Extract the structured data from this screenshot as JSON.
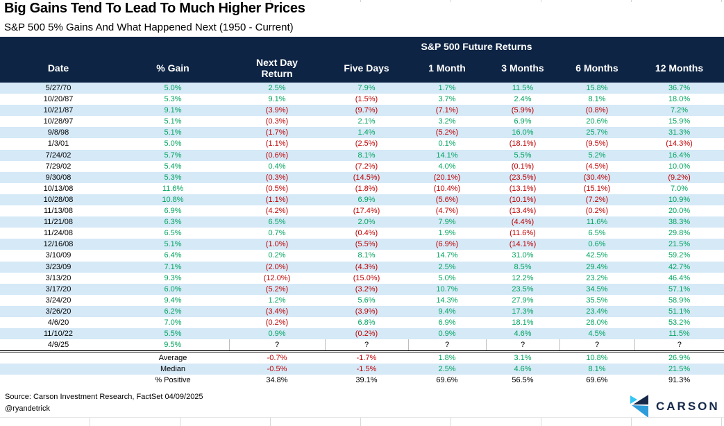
{
  "chart_data": {
    "type": "table",
    "title": "Big Gains Tend To Lead To Much Higher Prices",
    "subtitle": "S&P 500 5% Gains And What Happened Next (1950 - Current)",
    "group_header": "S&P 500 Future Returns",
    "group_header_spans_columns": [
      "Next Day Return",
      "Five Days",
      "1 Month",
      "3 Months",
      "6 Months",
      "12 Months"
    ],
    "columns": [
      "Date",
      "% Gain",
      "Next Day\nReturn",
      "Five Days",
      "1 Month",
      "3 Months",
      "6 Months",
      "12 Months"
    ],
    "rows": [
      [
        "5/27/70",
        "5.0%",
        "2.5%",
        "7.9%",
        "1.7%",
        "11.5%",
        "15.8%",
        "36.7%"
      ],
      [
        "10/20/87",
        "5.3%",
        "9.1%",
        "(1.5%)",
        "3.7%",
        "2.4%",
        "8.1%",
        "18.0%"
      ],
      [
        "10/21/87",
        "9.1%",
        "(3.9%)",
        "(9.7%)",
        "(7.1%)",
        "(5.9%)",
        "(0.8%)",
        "7.2%"
      ],
      [
        "10/28/97",
        "5.1%",
        "(0.3%)",
        "2.1%",
        "3.2%",
        "6.9%",
        "20.6%",
        "15.9%"
      ],
      [
        "9/8/98",
        "5.1%",
        "(1.7%)",
        "1.4%",
        "(5.2%)",
        "16.0%",
        "25.7%",
        "31.3%"
      ],
      [
        "1/3/01",
        "5.0%",
        "(1.1%)",
        "(2.5%)",
        "0.1%",
        "(18.1%)",
        "(9.5%)",
        "(14.3%)"
      ],
      [
        "7/24/02",
        "5.7%",
        "(0.6%)",
        "8.1%",
        "14.1%",
        "5.5%",
        "5.2%",
        "16.4%"
      ],
      [
        "7/29/02",
        "5.4%",
        "0.4%",
        "(7.2%)",
        "4.0%",
        "(0.1%)",
        "(4.5%)",
        "10.0%"
      ],
      [
        "9/30/08",
        "5.3%",
        "(0.3%)",
        "(14.5%)",
        "(20.1%)",
        "(23.5%)",
        "(30.4%)",
        "(9.2%)"
      ],
      [
        "10/13/08",
        "11.6%",
        "(0.5%)",
        "(1.8%)",
        "(10.4%)",
        "(13.1%)",
        "(15.1%)",
        "7.0%"
      ],
      [
        "10/28/08",
        "10.8%",
        "(1.1%)",
        "6.9%",
        "(5.6%)",
        "(10.1%)",
        "(7.2%)",
        "10.9%"
      ],
      [
        "11/13/08",
        "6.9%",
        "(4.2%)",
        "(17.4%)",
        "(4.7%)",
        "(13.4%)",
        "(0.2%)",
        "20.0%"
      ],
      [
        "11/21/08",
        "6.3%",
        "6.5%",
        "2.0%",
        "7.9%",
        "(4.4%)",
        "11.6%",
        "38.3%"
      ],
      [
        "11/24/08",
        "6.5%",
        "0.7%",
        "(0.4%)",
        "1.9%",
        "(11.6%)",
        "6.5%",
        "29.8%"
      ],
      [
        "12/16/08",
        "5.1%",
        "(1.0%)",
        "(5.5%)",
        "(6.9%)",
        "(14.1%)",
        "0.6%",
        "21.5%"
      ],
      [
        "3/10/09",
        "6.4%",
        "0.2%",
        "8.1%",
        "14.7%",
        "31.0%",
        "42.5%",
        "59.2%"
      ],
      [
        "3/23/09",
        "7.1%",
        "(2.0%)",
        "(4.3%)",
        "2.5%",
        "8.5%",
        "29.4%",
        "42.7%"
      ],
      [
        "3/13/20",
        "9.3%",
        "(12.0%)",
        "(15.0%)",
        "5.0%",
        "12.2%",
        "23.2%",
        "46.4%"
      ],
      [
        "3/17/20",
        "6.0%",
        "(5.2%)",
        "(3.2%)",
        "10.7%",
        "23.5%",
        "34.5%",
        "57.1%"
      ],
      [
        "3/24/20",
        "9.4%",
        "1.2%",
        "5.6%",
        "14.3%",
        "27.9%",
        "35.5%",
        "58.9%"
      ],
      [
        "3/26/20",
        "6.2%",
        "(3.4%)",
        "(3.9%)",
        "9.4%",
        "17.3%",
        "23.4%",
        "51.1%"
      ],
      [
        "4/6/20",
        "7.0%",
        "(0.2%)",
        "6.8%",
        "6.9%",
        "18.1%",
        "28.0%",
        "53.2%"
      ],
      [
        "11/10/22",
        "5.5%",
        "0.9%",
        "(0.2%)",
        "0.9%",
        "4.6%",
        "4.5%",
        "11.5%"
      ],
      [
        "4/9/25",
        "9.5%",
        "?",
        "?",
        "?",
        "?",
        "?",
        "?"
      ]
    ],
    "summary": [
      {
        "label": "Average",
        "values": [
          "-0.7%",
          "-1.7%",
          "1.8%",
          "3.1%",
          "10.8%",
          "26.9%"
        ],
        "style": "auto"
      },
      {
        "label": "Median",
        "values": [
          "-0.5%",
          "-1.5%",
          "2.5%",
          "4.6%",
          "8.1%",
          "21.5%"
        ],
        "style": "auto"
      },
      {
        "label": "% Positive",
        "values": [
          "34.8%",
          "39.1%",
          "69.6%",
          "56.5%",
          "69.6%",
          "91.3%"
        ],
        "style": "plain"
      }
    ]
  },
  "footer": {
    "source": "Source: Carson Investment Research, FactSet 04/09/2025",
    "handle": "@ryandetrick",
    "logo_text": "CARSON"
  },
  "colors": {
    "header_navy": "#0d2444",
    "row_stripe_blue": "#d5e9f7",
    "positive_green": "#00a45e",
    "negative_red": "#c00000",
    "logo_navy": "#16294a",
    "logo_blue": "#2d9cdb",
    "logo_cyan": "#35c7f4"
  }
}
